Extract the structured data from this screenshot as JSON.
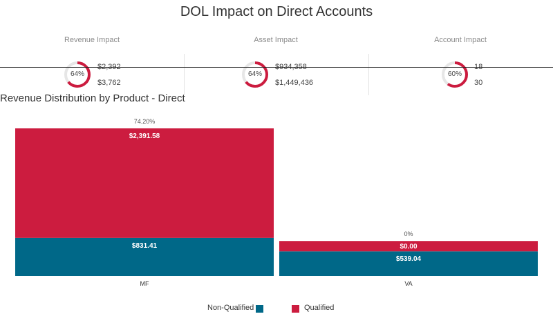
{
  "header": {
    "title": "DOL Impact on Direct Accounts"
  },
  "kpis": [
    {
      "label": "Revenue Impact",
      "percent_label": "64%",
      "percent": 64,
      "value_top": "$2,392",
      "value_bottom": "$3,762"
    },
    {
      "label": "Asset Impact",
      "percent_label": "64%",
      "percent": 64,
      "value_top": "$934,358",
      "value_bottom": "$1,449,436"
    },
    {
      "label": "Account Impact",
      "percent_label": "60%",
      "percent": 60,
      "value_top": "18",
      "value_bottom": "30"
    }
  ],
  "colors": {
    "qualified": "#cc1c3f",
    "non_qualified": "#006888",
    "donut_track": "#e6e6e6"
  },
  "chart_data": {
    "type": "bar",
    "stacked": true,
    "title": "Revenue Distribution by Product - Direct",
    "categories": [
      "MF",
      "VA"
    ],
    "series": [
      {
        "name": "Non-Qualified",
        "values": [
          831.41,
          539.04
        ],
        "labels": [
          "$831.41",
          "$539.04"
        ]
      },
      {
        "name": "Qualified",
        "values": [
          2391.58,
          0.0
        ],
        "labels": [
          "$2,391.58",
          "$0.00"
        ]
      }
    ],
    "percent_labels": [
      "74.20%",
      "0%"
    ],
    "legend": {
      "items": [
        "Non-Qualified",
        "Qualified"
      ],
      "position": "bottom"
    }
  }
}
